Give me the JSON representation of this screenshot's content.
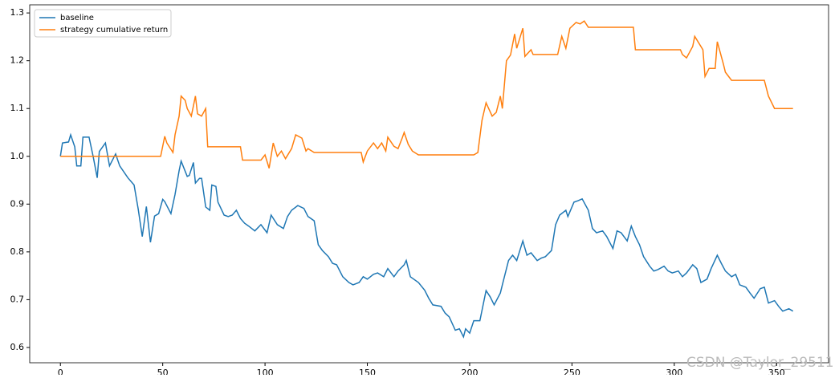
{
  "chart_data": {
    "type": "line",
    "xlim": [
      -15,
      375.4
    ],
    "ylim": [
      0.568,
      1.317
    ],
    "xticks": [
      0,
      50,
      100,
      150,
      200,
      250,
      300,
      350
    ],
    "yticks": [
      0.6,
      0.7,
      0.8,
      0.9,
      {
        "value": 1,
        "label": "1.0"
      },
      1.1,
      1.2,
      1.3
    ],
    "grid": false,
    "legend": "upper left",
    "watermark": "CSDN @Taylor_29511",
    "series": [
      {
        "name": "baseline",
        "color": "#1f77b4",
        "x": [
          0,
          1,
          4,
          5,
          7,
          8,
          10,
          11,
          14,
          16,
          18,
          19,
          22,
          24,
          27,
          29,
          33,
          36,
          38,
          40,
          42,
          44,
          46,
          48,
          50,
          51,
          54,
          56,
          58,
          59,
          62,
          63,
          65,
          66,
          68,
          69,
          71,
          73,
          74,
          76,
          77,
          80,
          82,
          84,
          86,
          88,
          90,
          92,
          95,
          98,
          101,
          103,
          106,
          109,
          111,
          113,
          116,
          119,
          121,
          124,
          126,
          128,
          131,
          133,
          135,
          138,
          141,
          143,
          146,
          148,
          150,
          153,
          155,
          158,
          160,
          163,
          165,
          168,
          169,
          171,
          175,
          178,
          180,
          182,
          186,
          188,
          190,
          193,
          195,
          197,
          198,
          200,
          202,
          205,
          208,
          210,
          212,
          215,
          216,
          219,
          221,
          223,
          226,
          228,
          230,
          233,
          235,
          237,
          240,
          242,
          244,
          247,
          248,
          251,
          253,
          255,
          258,
          260,
          262,
          265,
          267,
          270,
          272,
          274,
          277,
          279,
          281,
          283,
          285,
          288,
          290,
          292,
          295,
          297,
          299,
          302,
          304,
          306,
          309,
          311,
          313,
          316,
          318,
          321,
          323,
          325,
          328,
          330,
          332,
          335,
          337,
          339,
          342,
          344,
          346,
          349,
          351,
          353,
          356,
          358
        ],
        "values": [
          1.0,
          1.028,
          1.03,
          1.045,
          1.02,
          0.98,
          0.98,
          1.04,
          1.04,
          1.0,
          0.955,
          1.01,
          1.028,
          0.98,
          1.005,
          0.98,
          0.955,
          0.94,
          0.89,
          0.832,
          0.895,
          0.82,
          0.875,
          0.88,
          0.91,
          0.905,
          0.88,
          0.92,
          0.97,
          0.99,
          0.958,
          0.96,
          0.987,
          0.944,
          0.954,
          0.954,
          0.894,
          0.887,
          0.94,
          0.937,
          0.904,
          0.877,
          0.874,
          0.877,
          0.887,
          0.87,
          0.86,
          0.854,
          0.844,
          0.857,
          0.84,
          0.877,
          0.857,
          0.849,
          0.874,
          0.887,
          0.897,
          0.891,
          0.874,
          0.865,
          0.815,
          0.803,
          0.79,
          0.776,
          0.773,
          0.748,
          0.736,
          0.731,
          0.736,
          0.748,
          0.743,
          0.753,
          0.756,
          0.748,
          0.765,
          0.748,
          0.76,
          0.773,
          0.782,
          0.748,
          0.736,
          0.72,
          0.703,
          0.689,
          0.686,
          0.672,
          0.664,
          0.636,
          0.639,
          0.622,
          0.639,
          0.63,
          0.656,
          0.656,
          0.719,
          0.706,
          0.689,
          0.714,
          0.731,
          0.782,
          0.793,
          0.782,
          0.823,
          0.793,
          0.798,
          0.782,
          0.787,
          0.79,
          0.803,
          0.857,
          0.877,
          0.887,
          0.874,
          0.904,
          0.907,
          0.911,
          0.887,
          0.849,
          0.84,
          0.844,
          0.832,
          0.807,
          0.844,
          0.84,
          0.823,
          0.854,
          0.832,
          0.815,
          0.79,
          0.77,
          0.76,
          0.763,
          0.77,
          0.76,
          0.756,
          0.76,
          0.748,
          0.756,
          0.773,
          0.765,
          0.736,
          0.743,
          0.765,
          0.793,
          0.776,
          0.76,
          0.748,
          0.753,
          0.731,
          0.726,
          0.714,
          0.703,
          0.723,
          0.726,
          0.693,
          0.698,
          0.686,
          0.676,
          0.681,
          0.676
        ]
      },
      {
        "name": "strategy cumulative return",
        "color": "#ff7f0e",
        "x": [
          0,
          49,
          51,
          52,
          55,
          56,
          58,
          59,
          61,
          62,
          64,
          66,
          67,
          69,
          71,
          72,
          88,
          89,
          98,
          100,
          102,
          104,
          106,
          108,
          110,
          113,
          115,
          118,
          120,
          121,
          124,
          147,
          148,
          150,
          153,
          155,
          157,
          159,
          160,
          163,
          165,
          167,
          168,
          170,
          172,
          175,
          202,
          204,
          206,
          208,
          211,
          213,
          215,
          216,
          218,
          220,
          222,
          223,
          226,
          227,
          230,
          231,
          243,
          245,
          247,
          249,
          252,
          254,
          256,
          258,
          280,
          281,
          303,
          304,
          306,
          309,
          310,
          314,
          315,
          317,
          320,
          321,
          324,
          325,
          328,
          344,
          346,
          349,
          358
        ],
        "values": [
          1.0,
          1.0,
          1.042,
          1.028,
          1.008,
          1.045,
          1.084,
          1.126,
          1.117,
          1.1,
          1.084,
          1.126,
          1.089,
          1.084,
          1.1,
          1.02,
          1.02,
          0.992,
          0.992,
          1.003,
          0.975,
          1.028,
          1.0,
          1.011,
          0.995,
          1.016,
          1.045,
          1.038,
          1.011,
          1.016,
          1.008,
          1.008,
          0.988,
          1.011,
          1.028,
          1.016,
          1.028,
          1.011,
          1.04,
          1.021,
          1.016,
          1.038,
          1.05,
          1.025,
          1.011,
          1.003,
          1.003,
          1.008,
          1.075,
          1.112,
          1.084,
          1.092,
          1.126,
          1.1,
          1.2,
          1.212,
          1.256,
          1.226,
          1.268,
          1.209,
          1.223,
          1.213,
          1.213,
          1.251,
          1.226,
          1.268,
          1.28,
          1.277,
          1.283,
          1.27,
          1.27,
          1.223,
          1.223,
          1.213,
          1.206,
          1.23,
          1.251,
          1.223,
          1.167,
          1.184,
          1.184,
          1.24,
          1.193,
          1.176,
          1.159,
          1.159,
          1.126,
          1.1,
          1.1
        ]
      }
    ]
  }
}
